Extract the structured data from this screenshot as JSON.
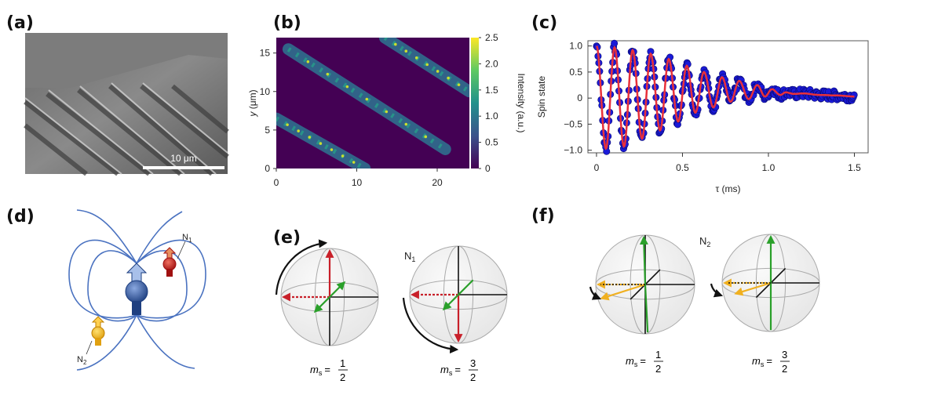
{
  "panels": {
    "a": {
      "label": "(a)",
      "scale_bar": "10 μm"
    },
    "b": {
      "label": "(b)"
    },
    "c": {
      "label": "(c)"
    },
    "d": {
      "label": "(d)",
      "n1": "N",
      "n1_sub": "1",
      "n2": "N",
      "n2_sub": "2"
    },
    "e": {
      "label": "(e)",
      "nucleus": "N",
      "nucleus_sub": "1",
      "spheres": [
        {
          "ms": "m",
          "ms_sub": "s",
          "eq": "=",
          "num": "1",
          "den": "2"
        },
        {
          "ms": "m",
          "ms_sub": "s",
          "eq": "=",
          "num": "3",
          "den": "2"
        }
      ]
    },
    "f": {
      "label": "(f)",
      "nucleus": "N",
      "nucleus_sub": "2",
      "spheres": [
        {
          "ms": "m",
          "ms_sub": "s",
          "eq": "=",
          "num": "1",
          "den": "2"
        },
        {
          "ms": "m",
          "ms_sub": "s",
          "eq": "=",
          "num": "3",
          "den": "2"
        }
      ]
    }
  },
  "colors": {
    "dots": "#1a1ad8",
    "fit": "#e8303a",
    "field_lines": "#4a72c0",
    "red": "#c8202a",
    "green": "#2aa02a",
    "yellow": "#f0b020"
  },
  "chart_data": [
    {
      "type": "heatmap",
      "panel": "b",
      "xlabel": "",
      "ylabel": "y (μm)",
      "ylabel_parts": {
        "var": "y",
        "unit": " (μm)"
      },
      "xlim": [
        0,
        24
      ],
      "ylim": [
        0,
        17
      ],
      "xticks": [
        "0",
        "10",
        "20"
      ],
      "xtick_values": [
        0,
        10,
        20
      ],
      "yticks": [
        "0",
        "5",
        "10",
        "15"
      ],
      "ytick_values": [
        0,
        5,
        10,
        15
      ],
      "colorbar": {
        "label": "Intensity (a.u.)",
        "range": [
          0,
          2.5
        ],
        "ticks": [
          "0",
          "0.5",
          "1.0",
          "1.5",
          "2.0",
          "2.5"
        ]
      },
      "stripes": [
        {
          "from": [
            0,
            6.5
          ],
          "to": [
            11,
            0
          ],
          "intensity": 1.0
        },
        {
          "from": [
            1.5,
            15.5
          ],
          "to": [
            21,
            2.5
          ],
          "intensity": 1.2
        },
        {
          "from": [
            13.5,
            17
          ],
          "to": [
            24,
            10
          ],
          "intensity": 1.2
        }
      ]
    },
    {
      "type": "scatter",
      "panel": "c",
      "xlabel": "τ (ms)",
      "ylabel": "Spin state",
      "xlim": [
        -0.05,
        1.58
      ],
      "ylim": [
        -1.05,
        1.1
      ],
      "xticks": [
        "0",
        "0.5",
        "1.0",
        "1.5"
      ],
      "xtick_values": [
        0,
        0.5,
        1.0,
        1.5
      ],
      "yticks": [
        "1.0",
        "0.5",
        "0",
        "−0.5",
        "−1.0"
      ],
      "ytick_values": [
        1.0,
        0.5,
        0,
        -0.5,
        -1.0
      ],
      "series": [
        {
          "name": "data",
          "style": "dots"
        },
        {
          "name": "fit",
          "style": "line",
          "x": [
            0,
            0.055,
            0.105,
            0.16,
            0.21,
            0.265,
            0.315,
            0.37,
            0.42,
            0.475,
            0.525,
            0.575,
            0.625,
            0.68,
            0.73,
            0.78,
            0.83,
            0.885,
            0.935,
            0.98,
            1.02,
            1.07,
            1.1,
            1.15,
            1.2,
            1.3,
            1.4,
            1.5
          ],
          "y": [
            1.0,
            -0.97,
            0.97,
            -0.93,
            0.92,
            -0.78,
            0.85,
            -0.62,
            0.75,
            -0.45,
            0.62,
            -0.28,
            0.5,
            -0.18,
            0.4,
            -0.07,
            0.33,
            -0.02,
            0.25,
            0.03,
            0.17,
            0.06,
            0.11,
            0.08,
            0.09,
            0.06,
            0.05,
            0.03
          ]
        }
      ]
    }
  ]
}
